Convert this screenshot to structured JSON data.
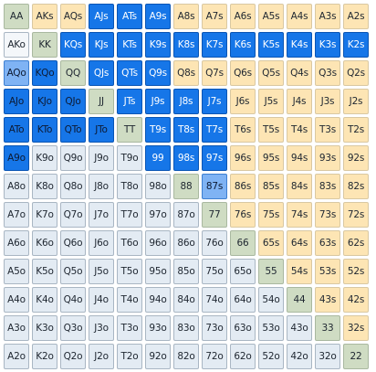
{
  "grid": {
    "rows": [
      [
        {
          "label": "AA",
          "type": "pair",
          "state": "none"
        },
        {
          "label": "AKs",
          "type": "suited",
          "state": "none"
        },
        {
          "label": "AQs",
          "type": "suited",
          "state": "none"
        },
        {
          "label": "AJs",
          "type": "suited",
          "state": "selected"
        },
        {
          "label": "ATs",
          "type": "suited",
          "state": "selected"
        },
        {
          "label": "A9s",
          "type": "suited",
          "state": "selected"
        },
        {
          "label": "A8s",
          "type": "suited",
          "state": "none"
        },
        {
          "label": "A7s",
          "type": "suited",
          "state": "none"
        },
        {
          "label": "A6s",
          "type": "suited",
          "state": "none"
        },
        {
          "label": "A5s",
          "type": "suited",
          "state": "none"
        },
        {
          "label": "A4s",
          "type": "suited",
          "state": "none"
        },
        {
          "label": "A3s",
          "type": "suited",
          "state": "none"
        },
        {
          "label": "A2s",
          "type": "suited",
          "state": "none"
        }
      ],
      [
        {
          "label": "AKo",
          "type": "offsuit",
          "state": "pale"
        },
        {
          "label": "KK",
          "type": "pair",
          "state": "none"
        },
        {
          "label": "KQs",
          "type": "suited",
          "state": "selected"
        },
        {
          "label": "KJs",
          "type": "suited",
          "state": "selected"
        },
        {
          "label": "KTs",
          "type": "suited",
          "state": "selected"
        },
        {
          "label": "K9s",
          "type": "suited",
          "state": "selected"
        },
        {
          "label": "K8s",
          "type": "suited",
          "state": "selected"
        },
        {
          "label": "K7s",
          "type": "suited",
          "state": "selected"
        },
        {
          "label": "K6s",
          "type": "suited",
          "state": "selected"
        },
        {
          "label": "K5s",
          "type": "suited",
          "state": "selected"
        },
        {
          "label": "K4s",
          "type": "suited",
          "state": "selected"
        },
        {
          "label": "K3s",
          "type": "suited",
          "state": "selected"
        },
        {
          "label": "K2s",
          "type": "suited",
          "state": "selected"
        }
      ],
      [
        {
          "label": "AQo",
          "type": "offsuit",
          "state": "partial"
        },
        {
          "label": "KQo",
          "type": "offsuit",
          "state": "selected-dark"
        },
        {
          "label": "QQ",
          "type": "pair",
          "state": "none"
        },
        {
          "label": "QJs",
          "type": "suited",
          "state": "selected"
        },
        {
          "label": "QTs",
          "type": "suited",
          "state": "selected"
        },
        {
          "label": "Q9s",
          "type": "suited",
          "state": "selected"
        },
        {
          "label": "Q8s",
          "type": "suited",
          "state": "none"
        },
        {
          "label": "Q7s",
          "type": "suited",
          "state": "none"
        },
        {
          "label": "Q6s",
          "type": "suited",
          "state": "none"
        },
        {
          "label": "Q5s",
          "type": "suited",
          "state": "none"
        },
        {
          "label": "Q4s",
          "type": "suited",
          "state": "none"
        },
        {
          "label": "Q3s",
          "type": "suited",
          "state": "none"
        },
        {
          "label": "Q2s",
          "type": "suited",
          "state": "none"
        }
      ],
      [
        {
          "label": "AJo",
          "type": "offsuit",
          "state": "selected-dark"
        },
        {
          "label": "KJo",
          "type": "offsuit",
          "state": "selected-dark"
        },
        {
          "label": "QJo",
          "type": "offsuit",
          "state": "selected-dark"
        },
        {
          "label": "JJ",
          "type": "pair",
          "state": "none"
        },
        {
          "label": "JTs",
          "type": "suited",
          "state": "selected"
        },
        {
          "label": "J9s",
          "type": "suited",
          "state": "selected"
        },
        {
          "label": "J8s",
          "type": "suited",
          "state": "selected"
        },
        {
          "label": "J7s",
          "type": "suited",
          "state": "selected"
        },
        {
          "label": "J6s",
          "type": "suited",
          "state": "none"
        },
        {
          "label": "J5s",
          "type": "suited",
          "state": "none"
        },
        {
          "label": "J4s",
          "type": "suited",
          "state": "none"
        },
        {
          "label": "J3s",
          "type": "suited",
          "state": "none"
        },
        {
          "label": "J2s",
          "type": "suited",
          "state": "none"
        }
      ],
      [
        {
          "label": "ATo",
          "type": "offsuit",
          "state": "selected-dark"
        },
        {
          "label": "KTo",
          "type": "offsuit",
          "state": "selected-dark"
        },
        {
          "label": "QTo",
          "type": "offsuit",
          "state": "selected-dark"
        },
        {
          "label": "JTo",
          "type": "offsuit",
          "state": "selected-dark"
        },
        {
          "label": "TT",
          "type": "pair",
          "state": "none"
        },
        {
          "label": "T9s",
          "type": "suited",
          "state": "selected"
        },
        {
          "label": "T8s",
          "type": "suited",
          "state": "selected"
        },
        {
          "label": "T7s",
          "type": "suited",
          "state": "selected"
        },
        {
          "label": "T6s",
          "type": "suited",
          "state": "none"
        },
        {
          "label": "T5s",
          "type": "suited",
          "state": "none"
        },
        {
          "label": "T4s",
          "type": "suited",
          "state": "none"
        },
        {
          "label": "T3s",
          "type": "suited",
          "state": "none"
        },
        {
          "label": "T2s",
          "type": "suited",
          "state": "none"
        }
      ],
      [
        {
          "label": "A9o",
          "type": "offsuit",
          "state": "selected-dark"
        },
        {
          "label": "K9o",
          "type": "offsuit",
          "state": "none"
        },
        {
          "label": "Q9o",
          "type": "offsuit",
          "state": "none"
        },
        {
          "label": "J9o",
          "type": "offsuit",
          "state": "none"
        },
        {
          "label": "T9o",
          "type": "offsuit",
          "state": "none"
        },
        {
          "label": "99",
          "type": "pair",
          "state": "selected"
        },
        {
          "label": "98s",
          "type": "suited",
          "state": "selected"
        },
        {
          "label": "97s",
          "type": "suited",
          "state": "selected"
        },
        {
          "label": "96s",
          "type": "suited",
          "state": "none"
        },
        {
          "label": "95s",
          "type": "suited",
          "state": "none"
        },
        {
          "label": "94s",
          "type": "suited",
          "state": "none"
        },
        {
          "label": "93s",
          "type": "suited",
          "state": "none"
        },
        {
          "label": "92s",
          "type": "suited",
          "state": "none"
        }
      ],
      [
        {
          "label": "A8o",
          "type": "offsuit",
          "state": "none"
        },
        {
          "label": "K8o",
          "type": "offsuit",
          "state": "none"
        },
        {
          "label": "Q8o",
          "type": "offsuit",
          "state": "none"
        },
        {
          "label": "J8o",
          "type": "offsuit",
          "state": "none"
        },
        {
          "label": "T8o",
          "type": "offsuit",
          "state": "none"
        },
        {
          "label": "98o",
          "type": "offsuit",
          "state": "none"
        },
        {
          "label": "88",
          "type": "pair",
          "state": "none"
        },
        {
          "label": "87s",
          "type": "suited",
          "state": "partial"
        },
        {
          "label": "86s",
          "type": "suited",
          "state": "none"
        },
        {
          "label": "85s",
          "type": "suited",
          "state": "none"
        },
        {
          "label": "84s",
          "type": "suited",
          "state": "none"
        },
        {
          "label": "83s",
          "type": "suited",
          "state": "none"
        },
        {
          "label": "82s",
          "type": "suited",
          "state": "none"
        }
      ],
      [
        {
          "label": "A7o",
          "type": "offsuit",
          "state": "none"
        },
        {
          "label": "K7o",
          "type": "offsuit",
          "state": "none"
        },
        {
          "label": "Q7o",
          "type": "offsuit",
          "state": "none"
        },
        {
          "label": "J7o",
          "type": "offsuit",
          "state": "none"
        },
        {
          "label": "T7o",
          "type": "offsuit",
          "state": "none"
        },
        {
          "label": "97o",
          "type": "offsuit",
          "state": "none"
        },
        {
          "label": "87o",
          "type": "offsuit",
          "state": "none"
        },
        {
          "label": "77",
          "type": "pair",
          "state": "none"
        },
        {
          "label": "76s",
          "type": "suited",
          "state": "none"
        },
        {
          "label": "75s",
          "type": "suited",
          "state": "none"
        },
        {
          "label": "74s",
          "type": "suited",
          "state": "none"
        },
        {
          "label": "73s",
          "type": "suited",
          "state": "none"
        },
        {
          "label": "72s",
          "type": "suited",
          "state": "none"
        }
      ],
      [
        {
          "label": "A6o",
          "type": "offsuit",
          "state": "none"
        },
        {
          "label": "K6o",
          "type": "offsuit",
          "state": "none"
        },
        {
          "label": "Q6o",
          "type": "offsuit",
          "state": "none"
        },
        {
          "label": "J6o",
          "type": "offsuit",
          "state": "none"
        },
        {
          "label": "T6o",
          "type": "offsuit",
          "state": "none"
        },
        {
          "label": "96o",
          "type": "offsuit",
          "state": "none"
        },
        {
          "label": "86o",
          "type": "offsuit",
          "state": "none"
        },
        {
          "label": "76o",
          "type": "offsuit",
          "state": "none"
        },
        {
          "label": "66",
          "type": "pair",
          "state": "none"
        },
        {
          "label": "65s",
          "type": "suited",
          "state": "none"
        },
        {
          "label": "64s",
          "type": "suited",
          "state": "none"
        },
        {
          "label": "63s",
          "type": "suited",
          "state": "none"
        },
        {
          "label": "62s",
          "type": "suited",
          "state": "none"
        }
      ],
      [
        {
          "label": "A5o",
          "type": "offsuit",
          "state": "none"
        },
        {
          "label": "K5o",
          "type": "offsuit",
          "state": "none"
        },
        {
          "label": "Q5o",
          "type": "offsuit",
          "state": "none"
        },
        {
          "label": "J5o",
          "type": "offsuit",
          "state": "none"
        },
        {
          "label": "T5o",
          "type": "offsuit",
          "state": "none"
        },
        {
          "label": "95o",
          "type": "offsuit",
          "state": "none"
        },
        {
          "label": "85o",
          "type": "offsuit",
          "state": "none"
        },
        {
          "label": "75o",
          "type": "offsuit",
          "state": "none"
        },
        {
          "label": "65o",
          "type": "offsuit",
          "state": "none"
        },
        {
          "label": "55",
          "type": "pair",
          "state": "none"
        },
        {
          "label": "54s",
          "type": "suited",
          "state": "none"
        },
        {
          "label": "53s",
          "type": "suited",
          "state": "none"
        },
        {
          "label": "52s",
          "type": "suited",
          "state": "none"
        }
      ],
      [
        {
          "label": "A4o",
          "type": "offsuit",
          "state": "none"
        },
        {
          "label": "K4o",
          "type": "offsuit",
          "state": "none"
        },
        {
          "label": "Q4o",
          "type": "offsuit",
          "state": "none"
        },
        {
          "label": "J4o",
          "type": "offsuit",
          "state": "none"
        },
        {
          "label": "T4o",
          "type": "offsuit",
          "state": "none"
        },
        {
          "label": "94o",
          "type": "offsuit",
          "state": "none"
        },
        {
          "label": "84o",
          "type": "offsuit",
          "state": "none"
        },
        {
          "label": "74o",
          "type": "offsuit",
          "state": "none"
        },
        {
          "label": "64o",
          "type": "offsuit",
          "state": "none"
        },
        {
          "label": "54o",
          "type": "offsuit",
          "state": "none"
        },
        {
          "label": "44",
          "type": "pair",
          "state": "none"
        },
        {
          "label": "43s",
          "type": "suited",
          "state": "none"
        },
        {
          "label": "42s",
          "type": "suited",
          "state": "none"
        }
      ],
      [
        {
          "label": "A3o",
          "type": "offsuit",
          "state": "none"
        },
        {
          "label": "K3o",
          "type": "offsuit",
          "state": "none"
        },
        {
          "label": "Q3o",
          "type": "offsuit",
          "state": "none"
        },
        {
          "label": "J3o",
          "type": "offsuit",
          "state": "none"
        },
        {
          "label": "T3o",
          "type": "offsuit",
          "state": "none"
        },
        {
          "label": "93o",
          "type": "offsuit",
          "state": "none"
        },
        {
          "label": "83o",
          "type": "offsuit",
          "state": "none"
        },
        {
          "label": "73o",
          "type": "offsuit",
          "state": "none"
        },
        {
          "label": "63o",
          "type": "offsuit",
          "state": "none"
        },
        {
          "label": "53o",
          "type": "offsuit",
          "state": "none"
        },
        {
          "label": "43o",
          "type": "offsuit",
          "state": "none"
        },
        {
          "label": "33",
          "type": "pair",
          "state": "none"
        },
        {
          "label": "32s",
          "type": "suited",
          "state": "none"
        }
      ],
      [
        {
          "label": "A2o",
          "type": "offsuit",
          "state": "none"
        },
        {
          "label": "K2o",
          "type": "offsuit",
          "state": "none"
        },
        {
          "label": "Q2o",
          "type": "offsuit",
          "state": "none"
        },
        {
          "label": "J2o",
          "type": "offsuit",
          "state": "none"
        },
        {
          "label": "T2o",
          "type": "offsuit",
          "state": "none"
        },
        {
          "label": "92o",
          "type": "offsuit",
          "state": "none"
        },
        {
          "label": "82o",
          "type": "offsuit",
          "state": "none"
        },
        {
          "label": "72o",
          "type": "offsuit",
          "state": "none"
        },
        {
          "label": "62o",
          "type": "offsuit",
          "state": "none"
        },
        {
          "label": "52o",
          "type": "offsuit",
          "state": "none"
        },
        {
          "label": "42o",
          "type": "offsuit",
          "state": "none"
        },
        {
          "label": "32o",
          "type": "offsuit",
          "state": "none"
        },
        {
          "label": "22",
          "type": "pair",
          "state": "none"
        }
      ]
    ]
  },
  "colors": {
    "suited": "#fde5b4",
    "pair": "#cfdcc3",
    "offsuit": "#e3ebf3",
    "selected": "#1676e8",
    "partial": "#7fb3f4"
  }
}
